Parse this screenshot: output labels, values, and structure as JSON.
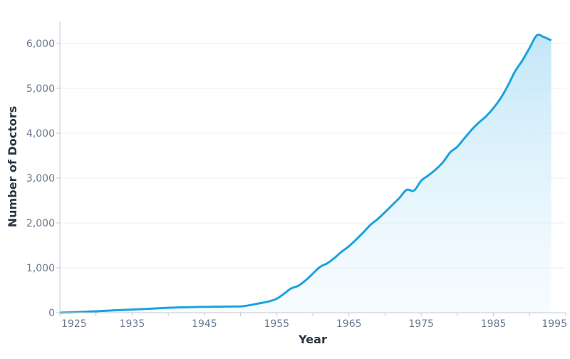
{
  "chart_data": {
    "type": "area",
    "title": "",
    "xlabel": "Year",
    "ylabel": "Number of Doctors",
    "xlim": [
      1925,
      1995
    ],
    "ylim": [
      0,
      6500
    ],
    "x_ticks": [
      "1925",
      "1935",
      "1945",
      "1955",
      "1965",
      "1975",
      "1985",
      "1995"
    ],
    "y_ticks": [
      "0",
      "1,000",
      "2,000",
      "3,000",
      "4,000",
      "5,000",
      "6,000"
    ],
    "grid": "horizontal",
    "colors": {
      "line": "#1ba3dd",
      "fill": "#bfe5f8"
    },
    "x": [
      1925,
      1926,
      1927,
      1928,
      1929,
      1930,
      1931,
      1932,
      1933,
      1934,
      1935,
      1936,
      1937,
      1938,
      1939,
      1940,
      1941,
      1942,
      1943,
      1944,
      1945,
      1946,
      1947,
      1948,
      1949,
      1950,
      1951,
      1952,
      1953,
      1954,
      1955,
      1956,
      1957,
      1958,
      1959,
      1960,
      1961,
      1962,
      1963,
      1964,
      1965,
      1966,
      1967,
      1968,
      1969,
      1970,
      1971,
      1972,
      1973,
      1974,
      1975,
      1976,
      1977,
      1978,
      1979,
      1980,
      1981,
      1982,
      1983,
      1984,
      1985,
      1986,
      1987,
      1988,
      1989,
      1990,
      1991,
      1992,
      1993
    ],
    "values": [
      0,
      5,
      10,
      18,
      25,
      32,
      40,
      48,
      56,
      63,
      70,
      78,
      86,
      94,
      102,
      110,
      115,
      120,
      124,
      127,
      130,
      132,
      134,
      136,
      138,
      140,
      160,
      190,
      220,
      255,
      310,
      420,
      540,
      600,
      720,
      870,
      1020,
      1100,
      1220,
      1360,
      1480,
      1630,
      1790,
      1960,
      2090,
      2240,
      2400,
      2560,
      2740,
      2720,
      2940,
      3060,
      3190,
      3350,
      3570,
      3700,
      3890,
      4080,
      4240,
      4380,
      4560,
      4780,
      5060,
      5380,
      5620,
      5900,
      6180,
      6140,
      6070
    ]
  }
}
